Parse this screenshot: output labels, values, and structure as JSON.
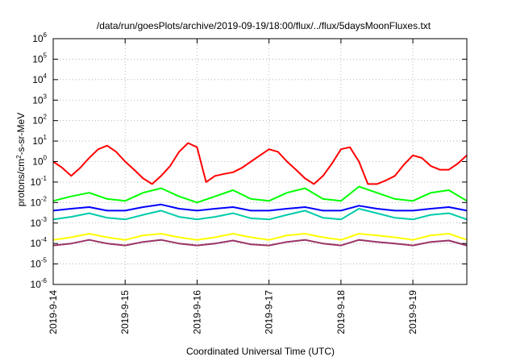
{
  "chart_data": {
    "type": "line",
    "title": "/data/run/goesPlots/archive/2019-09-19/18:00/flux/../flux/5daysMoonFluxes.txt",
    "xlabel": "Coordinated Universal Time (UTC)",
    "ylabel": {
      "base": "protons/cm",
      "sup": "2",
      "rest": "-s-sr-MeV"
    },
    "x_range": [
      "2019-09-14 00:00",
      "2019-09-19 18:00"
    ],
    "x_ticks": [
      "2019-9-14",
      "2019-9-15",
      "2019-9-16",
      "2019-9-17",
      "2019-9-18",
      "2019-9-19"
    ],
    "y_scale": "log",
    "ylim": [
      1e-06,
      1000000
    ],
    "y_ticks": [
      {
        "base": "10",
        "exp": "-6"
      },
      {
        "base": "10",
        "exp": "-5"
      },
      {
        "base": "10",
        "exp": "-4"
      },
      {
        "base": "10",
        "exp": "-3"
      },
      {
        "base": "10",
        "exp": "-2"
      },
      {
        "base": "10",
        "exp": "-1"
      },
      {
        "base": "10",
        "exp": "0"
      },
      {
        "base": "10",
        "exp": "1"
      },
      {
        "base": "10",
        "exp": "2"
      },
      {
        "base": "10",
        "exp": "3"
      },
      {
        "base": "10",
        "exp": "4"
      },
      {
        "base": "10",
        "exp": "5"
      },
      {
        "base": "10",
        "exp": "6"
      }
    ],
    "grid": true,
    "series": [
      {
        "color": "#ff0000",
        "x": [
          "2019-09-14 00:00",
          "2019-09-14 03:00",
          "2019-09-14 06:00",
          "2019-09-14 09:00",
          "2019-09-14 12:00",
          "2019-09-14 15:00",
          "2019-09-14 18:00",
          "2019-09-14 21:00",
          "2019-09-15 00:00",
          "2019-09-15 03:00",
          "2019-09-15 06:00",
          "2019-09-15 09:00",
          "2019-09-15 12:00",
          "2019-09-15 15:00",
          "2019-09-15 18:00",
          "2019-09-15 21:00",
          "2019-09-16 00:00",
          "2019-09-16 03:00",
          "2019-09-16 06:00",
          "2019-09-16 09:00",
          "2019-09-16 12:00",
          "2019-09-16 15:00",
          "2019-09-16 18:00",
          "2019-09-16 21:00",
          "2019-09-17 00:00",
          "2019-09-17 03:00",
          "2019-09-17 06:00",
          "2019-09-17 09:00",
          "2019-09-17 12:00",
          "2019-09-17 15:00",
          "2019-09-17 18:00",
          "2019-09-17 21:00",
          "2019-09-18 00:00",
          "2019-09-18 03:00",
          "2019-09-18 06:00",
          "2019-09-18 09:00",
          "2019-09-18 12:00",
          "2019-09-18 15:00",
          "2019-09-18 18:00",
          "2019-09-18 21:00",
          "2019-09-19 00:00",
          "2019-09-19 03:00",
          "2019-09-19 06:00",
          "2019-09-19 09:00",
          "2019-09-19 12:00",
          "2019-09-19 15:00",
          "2019-09-19 18:00"
        ],
        "values": [
          1.0,
          0.5,
          0.2,
          0.5,
          1.5,
          4.0,
          6.0,
          3.0,
          1.0,
          0.4,
          0.15,
          0.08,
          0.2,
          0.6,
          3.0,
          8.0,
          5.0,
          0.1,
          0.2,
          0.25,
          0.3,
          0.5,
          1.0,
          2.0,
          4.0,
          3.0,
          1.0,
          0.4,
          0.15,
          0.08,
          0.2,
          0.8,
          4.0,
          5.0,
          1.0,
          0.08,
          0.08,
          0.12,
          0.2,
          0.7,
          2.0,
          1.5,
          0.6,
          0.4,
          0.4,
          0.8,
          2.0
        ]
      },
      {
        "color": "#00ff00",
        "x": [
          "2019-09-14 00:00",
          "2019-09-14 06:00",
          "2019-09-14 12:00",
          "2019-09-14 18:00",
          "2019-09-15 00:00",
          "2019-09-15 06:00",
          "2019-09-15 12:00",
          "2019-09-15 18:00",
          "2019-09-16 00:00",
          "2019-09-16 06:00",
          "2019-09-16 12:00",
          "2019-09-16 18:00",
          "2019-09-17 00:00",
          "2019-09-17 06:00",
          "2019-09-17 12:00",
          "2019-09-17 18:00",
          "2019-09-18 00:00",
          "2019-09-18 06:00",
          "2019-09-18 12:00",
          "2019-09-18 18:00",
          "2019-09-19 00:00",
          "2019-09-19 06:00",
          "2019-09-19 12:00",
          "2019-09-19 18:00"
        ],
        "values": [
          0.012,
          0.02,
          0.03,
          0.015,
          0.012,
          0.03,
          0.05,
          0.02,
          0.01,
          0.02,
          0.04,
          0.015,
          0.012,
          0.03,
          0.05,
          0.015,
          0.012,
          0.06,
          0.03,
          0.015,
          0.012,
          0.03,
          0.04,
          0.012
        ]
      },
      {
        "color": "#00ccaa",
        "x": [
          "2019-09-14 00:00",
          "2019-09-14 06:00",
          "2019-09-14 12:00",
          "2019-09-14 18:00",
          "2019-09-15 00:00",
          "2019-09-15 06:00",
          "2019-09-15 12:00",
          "2019-09-15 18:00",
          "2019-09-16 00:00",
          "2019-09-16 06:00",
          "2019-09-16 12:00",
          "2019-09-16 18:00",
          "2019-09-17 00:00",
          "2019-09-17 06:00",
          "2019-09-17 12:00",
          "2019-09-17 18:00",
          "2019-09-18 00:00",
          "2019-09-18 06:00",
          "2019-09-18 12:00",
          "2019-09-18 18:00",
          "2019-09-19 00:00",
          "2019-09-19 06:00",
          "2019-09-19 12:00",
          "2019-09-19 18:00"
        ],
        "values": [
          0.0015,
          0.002,
          0.003,
          0.0018,
          0.0015,
          0.0025,
          0.004,
          0.002,
          0.0015,
          0.002,
          0.003,
          0.0017,
          0.0015,
          0.0025,
          0.004,
          0.0018,
          0.0015,
          0.005,
          0.003,
          0.0018,
          0.0015,
          0.0025,
          0.003,
          0.0015
        ]
      },
      {
        "color": "#0000ff",
        "x": [
          "2019-09-14 00:00",
          "2019-09-14 06:00",
          "2019-09-14 12:00",
          "2019-09-14 18:00",
          "2019-09-15 00:00",
          "2019-09-15 06:00",
          "2019-09-15 12:00",
          "2019-09-15 18:00",
          "2019-09-16 00:00",
          "2019-09-16 06:00",
          "2019-09-16 12:00",
          "2019-09-16 18:00",
          "2019-09-17 00:00",
          "2019-09-17 06:00",
          "2019-09-17 12:00",
          "2019-09-17 18:00",
          "2019-09-18 00:00",
          "2019-09-18 06:00",
          "2019-09-18 12:00",
          "2019-09-18 18:00",
          "2019-09-19 00:00",
          "2019-09-19 06:00",
          "2019-09-19 12:00",
          "2019-09-19 18:00"
        ],
        "values": [
          0.004,
          0.005,
          0.006,
          0.004,
          0.004,
          0.006,
          0.008,
          0.005,
          0.004,
          0.005,
          0.006,
          0.004,
          0.004,
          0.005,
          0.006,
          0.004,
          0.004,
          0.007,
          0.005,
          0.004,
          0.004,
          0.005,
          0.006,
          0.004
        ]
      },
      {
        "color": "#ffff00",
        "x": [
          "2019-09-14 00:00",
          "2019-09-14 06:00",
          "2019-09-14 12:00",
          "2019-09-14 18:00",
          "2019-09-15 00:00",
          "2019-09-15 06:00",
          "2019-09-15 12:00",
          "2019-09-15 18:00",
          "2019-09-16 00:00",
          "2019-09-16 06:00",
          "2019-09-16 12:00",
          "2019-09-16 18:00",
          "2019-09-17 00:00",
          "2019-09-17 06:00",
          "2019-09-17 12:00",
          "2019-09-17 18:00",
          "2019-09-18 00:00",
          "2019-09-18 06:00",
          "2019-09-18 12:00",
          "2019-09-18 18:00",
          "2019-09-19 00:00",
          "2019-09-19 06:00",
          "2019-09-19 12:00",
          "2019-09-19 18:00"
        ],
        "values": [
          0.00015,
          0.0002,
          0.0003,
          0.0002,
          0.00015,
          0.00025,
          0.0003,
          0.0002,
          0.00015,
          0.0002,
          0.0003,
          0.0002,
          0.00015,
          0.00025,
          0.0003,
          0.0002,
          0.00015,
          0.0003,
          0.00025,
          0.0002,
          0.00015,
          0.00025,
          0.0003,
          0.00015
        ]
      },
      {
        "color": "#993366",
        "x": [
          "2019-09-14 00:00",
          "2019-09-14 06:00",
          "2019-09-14 12:00",
          "2019-09-14 18:00",
          "2019-09-15 00:00",
          "2019-09-15 06:00",
          "2019-09-15 12:00",
          "2019-09-15 18:00",
          "2019-09-16 00:00",
          "2019-09-16 06:00",
          "2019-09-16 12:00",
          "2019-09-16 18:00",
          "2019-09-17 00:00",
          "2019-09-17 06:00",
          "2019-09-17 12:00",
          "2019-09-17 18:00",
          "2019-09-18 00:00",
          "2019-09-18 06:00",
          "2019-09-18 12:00",
          "2019-09-18 18:00",
          "2019-09-19 00:00",
          "2019-09-19 06:00",
          "2019-09-19 12:00",
          "2019-09-19 18:00"
        ],
        "values": [
          8e-05,
          0.0001,
          0.00015,
          0.0001,
          8e-05,
          0.00012,
          0.00015,
          0.0001,
          8e-05,
          0.0001,
          0.00014,
          9e-05,
          8e-05,
          0.00012,
          0.00015,
          0.0001,
          8e-05,
          0.00015,
          0.00012,
          0.0001,
          8e-05,
          0.00012,
          0.00014,
          8e-05
        ]
      }
    ]
  }
}
